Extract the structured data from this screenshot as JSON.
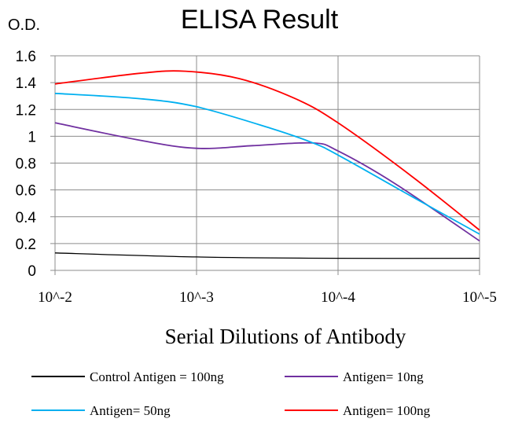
{
  "chart_data": {
    "type": "line",
    "title": "ELISA Result",
    "ylabel": "O.D.",
    "xlabel": "Serial Dilutions  of Antibody",
    "ylim": [
      0,
      1.6
    ],
    "yticks": [
      0,
      0.2,
      0.4,
      0.6,
      0.8,
      1,
      1.2,
      1.4,
      1.6
    ],
    "ytick_labels": [
      "0",
      "0.2",
      "0.4",
      "0.6",
      "0.8",
      "1",
      "1.2",
      "1.4",
      "1.6"
    ],
    "x_scale": "log",
    "x": [
      0.01,
      0.001,
      0.0001,
      1e-05
    ],
    "xtick_labels": [
      "10^-2",
      "10^-3",
      "10^-4",
      "10^-5"
    ],
    "grid": true,
    "legend_position": "bottom",
    "series": [
      {
        "name": "Control Antigen = 100ng",
        "color": "#000000",
        "values": [
          0.13,
          0.1,
          0.09,
          0.09
        ]
      },
      {
        "name": "Antigen= 10ng",
        "color": "#7030a0",
        "values": [
          1.1,
          0.91,
          0.89,
          0.22
        ]
      },
      {
        "name": "Antigen= 50ng",
        "color": "#00b0f0",
        "values": [
          1.32,
          1.23,
          0.86,
          0.27
        ]
      },
      {
        "name": "Antigen= 100ng",
        "color": "#ff0000",
        "values": [
          1.39,
          1.48,
          1.1,
          0.3
        ]
      }
    ],
    "smooth_curve_points": {
      "Antigen= 10ng": [
        [
          0.01,
          1.1
        ],
        [
          0.0025,
          0.97
        ],
        [
          0.001,
          0.91
        ],
        [
          0.0004,
          0.93
        ],
        [
          0.00015,
          0.95
        ],
        [
          0.0001,
          0.89
        ],
        [
          4e-05,
          0.65
        ],
        [
          1e-05,
          0.22
        ]
      ],
      "Antigen= 50ng": [
        [
          0.01,
          1.32
        ],
        [
          0.0025,
          1.28
        ],
        [
          0.001,
          1.22
        ],
        [
          0.0003,
          1.06
        ],
        [
          0.00015,
          0.95
        ],
        [
          0.0001,
          0.86
        ],
        [
          3e-05,
          0.55
        ],
        [
          1e-05,
          0.27
        ]
      ],
      "Antigen= 100ng": [
        [
          0.01,
          1.39
        ],
        [
          0.0025,
          1.47
        ],
        [
          0.0012,
          1.485
        ],
        [
          0.0005,
          1.43
        ],
        [
          0.0002,
          1.28
        ],
        [
          0.0001,
          1.1
        ],
        [
          3e-05,
          0.7
        ],
        [
          1e-05,
          0.3
        ]
      ]
    }
  }
}
